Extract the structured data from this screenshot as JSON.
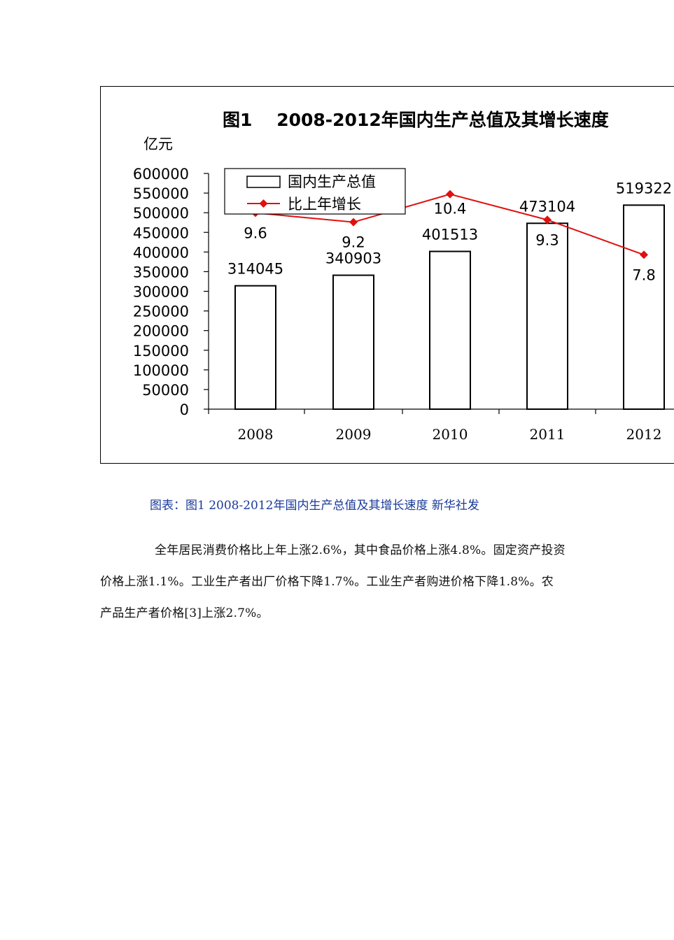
{
  "chart_data": {
    "type": "bar",
    "title": "图1    2008-2012年国内生产总值及其增长速度",
    "ylabel": "亿元",
    "ylim": [
      0,
      600000
    ],
    "yticks": [
      0,
      50000,
      100000,
      150000,
      200000,
      250000,
      300000,
      350000,
      400000,
      450000,
      500000,
      550000,
      600000
    ],
    "yticklabels": [
      "0",
      "50000",
      "100000",
      "150000",
      "200000",
      "250000",
      "300000",
      "350000",
      "400000",
      "450000",
      "500000",
      "550000",
      "600000"
    ],
    "categories": [
      "2008",
      "2009",
      "2010",
      "2011",
      "2012"
    ],
    "legend_position": "top-left",
    "grid": false,
    "series": [
      {
        "name": "国内生产总值",
        "type": "bar",
        "values": [
          314045,
          340903,
          401513,
          473104,
          519322
        ],
        "labels": [
          "314045",
          "340903",
          "401513",
          "473104",
          "519322"
        ],
        "color": "#ffffff",
        "edge_color": "#000000"
      },
      {
        "name": "比上年增长",
        "type": "line",
        "values": [
          9.6,
          9.2,
          10.4,
          9.3,
          7.8
        ],
        "labels": [
          "9.6",
          "9.2",
          "10.4",
          "9.3",
          "7.8"
        ],
        "color": "#e01010"
      }
    ]
  },
  "caption": "图表：图1 2008-2012年国内生产总值及其增长速度 新华社发",
  "paragraph": "全年居民消费价格比上年上涨2.6%，其中食品价格上涨4.8%。固定资产投资价格上涨1.1%。工业生产者出厂价格下降1.7%。工业生产者购进价格下降1.8%。农产品生产者价格[3]上涨2.7%。"
}
